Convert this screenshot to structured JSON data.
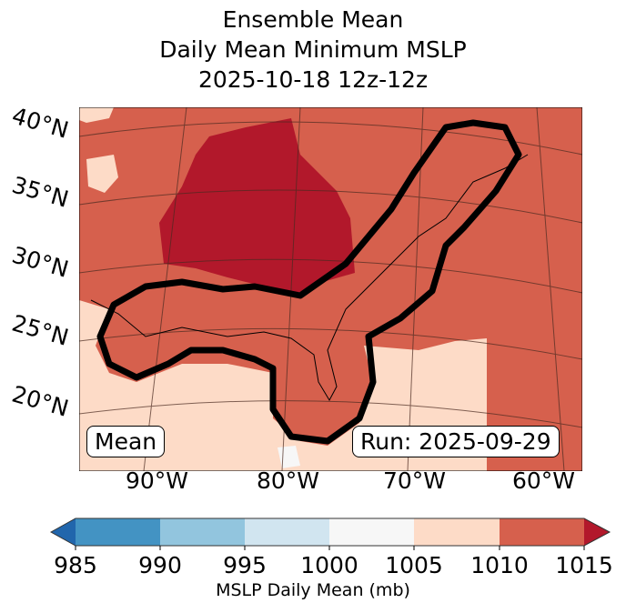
{
  "title": {
    "line1": "Ensemble Mean",
    "line2": "Daily Mean Minimum MSLP",
    "line3": "2025-10-18 12z-12z"
  },
  "map": {
    "lat_labels": [
      "40°N",
      "35°N",
      "30°N",
      "25°N",
      "20°N"
    ],
    "lon_labels": [
      "90°W",
      "80°W",
      "70°W",
      "60°W"
    ],
    "mean_label": "Mean",
    "run_label": "Run: 2025-09-29"
  },
  "colorbar": {
    "label": "MSLP Daily Mean (mb)",
    "ticks": [
      "985",
      "990",
      "995",
      "1000",
      "1005",
      "1010",
      "1015"
    ],
    "colors": [
      "#2166ac",
      "#4393c3",
      "#92c5de",
      "#d1e5f0",
      "#f7f7f7",
      "#fddbc7",
      "#d6604d",
      "#b2182b"
    ]
  }
}
